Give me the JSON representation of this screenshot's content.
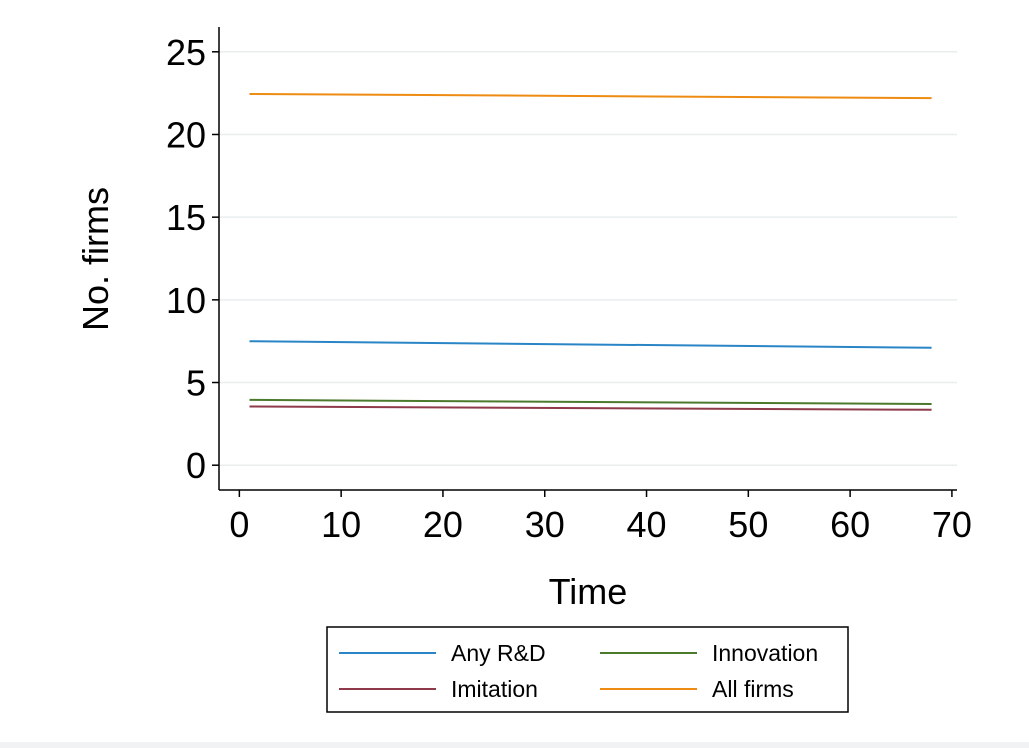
{
  "chart_data": {
    "type": "line",
    "title": "",
    "xlabel": "Time",
    "ylabel": "No. firms",
    "xlim": [
      -2,
      70.5
    ],
    "ylim": [
      -1.5,
      26.5
    ],
    "xticks": [
      0,
      10,
      20,
      30,
      40,
      50,
      60,
      70
    ],
    "xtick_labels": [
      "0",
      "10",
      "20",
      "30",
      "40",
      "50",
      "60",
      "70"
    ],
    "yticks": [
      0,
      5,
      10,
      15,
      20,
      25
    ],
    "ytick_labels": [
      "0",
      "5",
      "10",
      "15",
      "20",
      "25"
    ],
    "grid": true,
    "legend_position": "bottom",
    "series": [
      {
        "name": "Any R&D",
        "color": "#2a85c6",
        "x": [
          1,
          68
        ],
        "y": [
          7.5,
          7.1
        ]
      },
      {
        "name": "Innovation",
        "color": "#4c7a2c",
        "x": [
          1,
          68
        ],
        "y": [
          3.95,
          3.7
        ]
      },
      {
        "name": "Imitation",
        "color": "#8e3a4a",
        "x": [
          1,
          68
        ],
        "y": [
          3.55,
          3.35
        ]
      },
      {
        "name": "All firms",
        "color": "#ee8b12",
        "x": [
          1,
          68
        ],
        "y": [
          22.45,
          22.2
        ]
      }
    ]
  }
}
